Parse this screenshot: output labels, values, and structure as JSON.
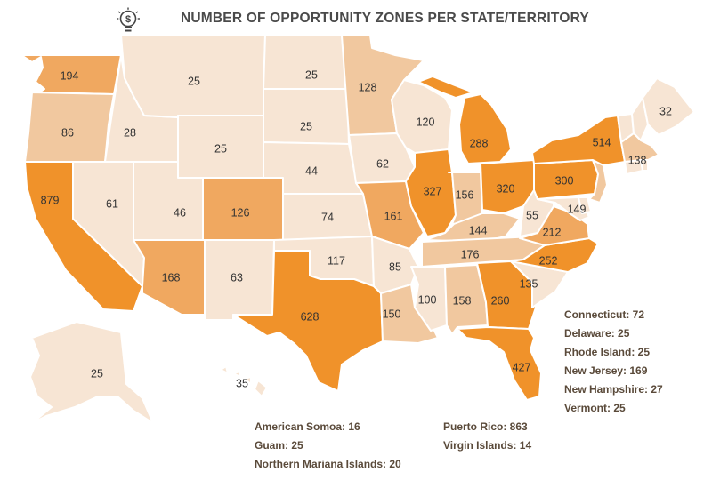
{
  "title": "NUMBER OF OPPORTUNITY ZONES PER STATE/TERRITORY",
  "icon": "lightbulb-dollar-icon",
  "colors": {
    "very_light": "#f7e5d4",
    "light": "#f1c89f",
    "medium": "#f0a860",
    "dark": "#f0922a",
    "accent": "#f28c1e",
    "text": "#4a4a4a"
  },
  "states": {
    "WA": "194",
    "OR": "86",
    "CA": "879",
    "ID": "28",
    "NV": "61",
    "MT": "25",
    "WY": "25",
    "UT": "46",
    "CO": "126",
    "AZ": "168",
    "NM": "63",
    "ND": "25",
    "SD": "25",
    "NE": "44",
    "KS": "74",
    "OK": "117",
    "TX": "628",
    "MN": "128",
    "IA": "62",
    "MO": "161",
    "AR": "85",
    "LA": "150",
    "WI": "120",
    "IL": "327",
    "MI": "288",
    "IN": "156",
    "OH": "320",
    "KY": "144",
    "TN": "176",
    "MS": "100",
    "AL": "158",
    "GA": "260",
    "FL": "427",
    "SC": "135",
    "NC": "252",
    "VA": "212",
    "WV": "55",
    "MD": "149",
    "PA": "300",
    "NY": "514",
    "ME": "32",
    "MA": "138",
    "AK": "25",
    "HI": "35"
  },
  "small_states": [
    "Connecticut: 72",
    "Delaware: 25",
    "Rhode Island: 25",
    "New Jersey: 169",
    "New Hampshire: 27",
    "Vermont: 25"
  ],
  "territories_left": [
    "American Somoa: 16",
    "Guam: 25",
    "Northern Mariana Islands: 20"
  ],
  "territories_right": [
    "Puerto Rico: 863",
    "Virgin Islands: 14"
  ]
}
